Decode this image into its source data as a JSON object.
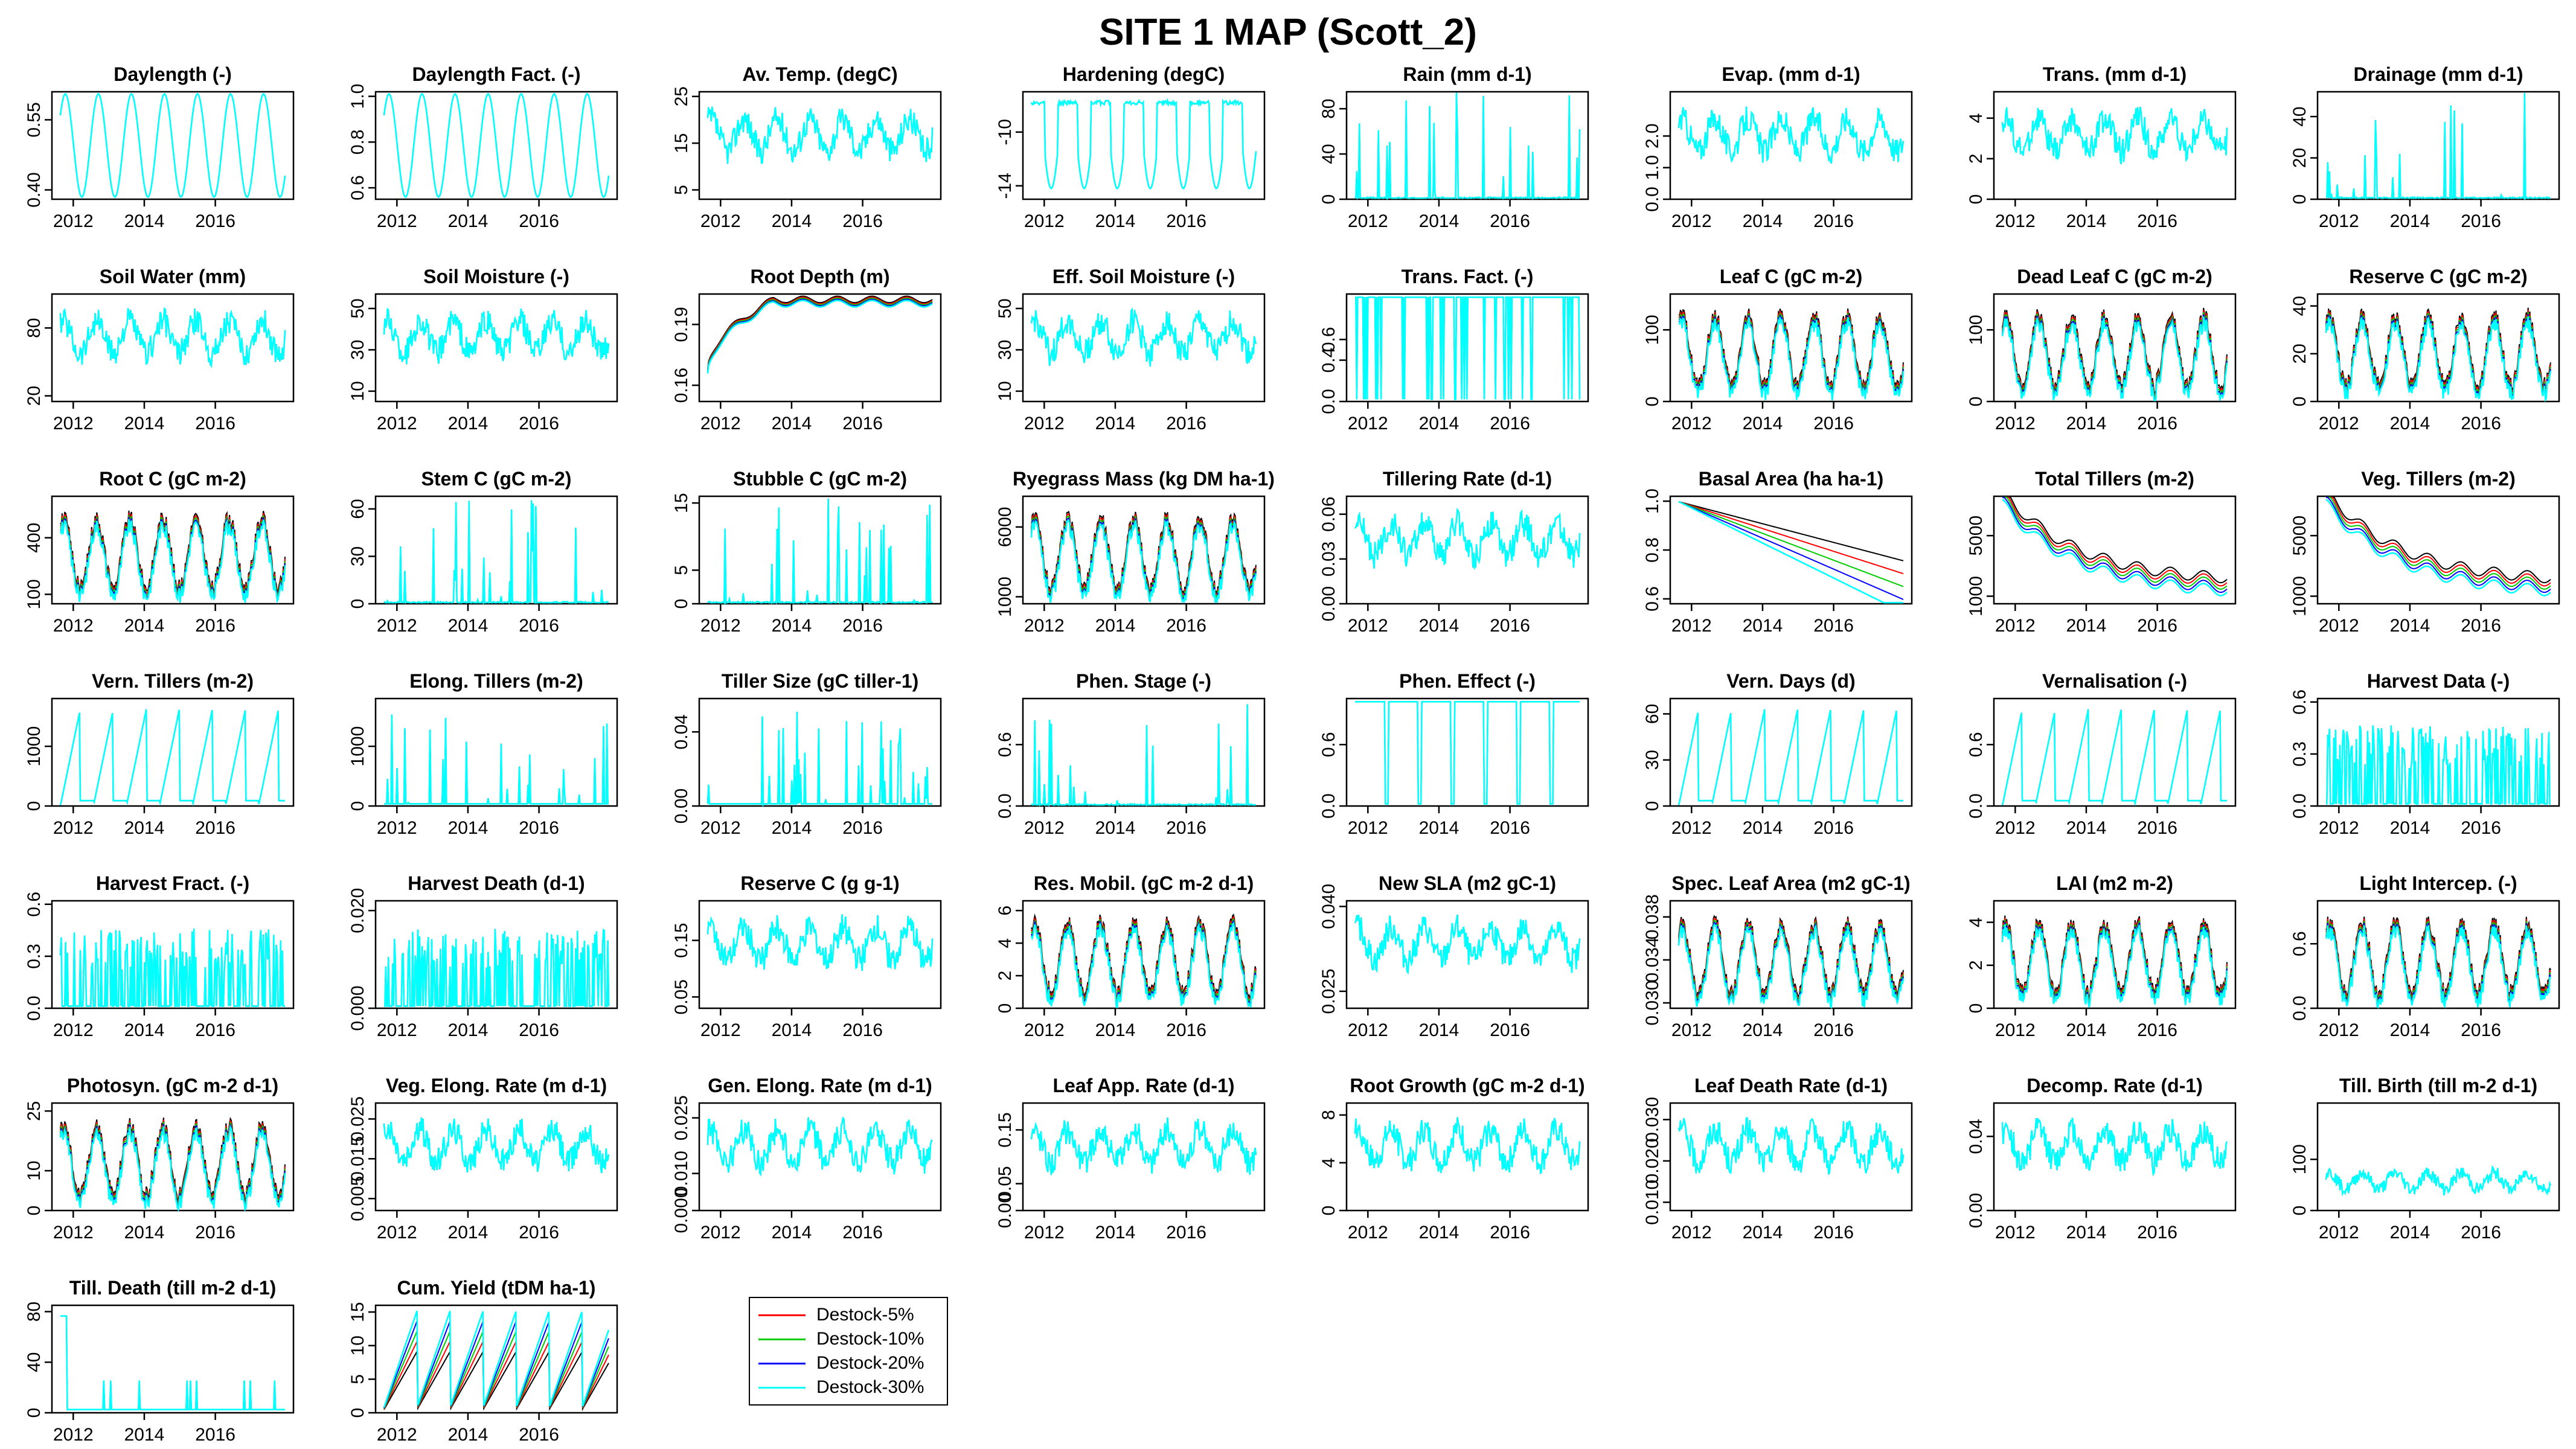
{
  "title": "SITE 1 MAP (Scott_2)",
  "colors": [
    "#000000",
    "#ff0000",
    "#00cd00",
    "#0000ff",
    "#00ffff"
  ],
  "legend": [
    "Destock-5%",
    "Destock-10%",
    "Destock-20%",
    "Destock-30%"
  ],
  "chart_data": [
    {
      "type": "line",
      "title": "Daylength (-)",
      "xlim": [
        2011.4,
        2018.2
      ],
      "xticks": [
        "2012",
        "2014",
        "2016"
      ],
      "ylim": [
        0.38,
        0.61
      ],
      "yticks": [
        "0.40",
        "0.55"
      ]
    },
    {
      "type": "line",
      "title": "Daylength Fact. (-)",
      "xlim": [
        2011.4,
        2018.2
      ],
      "xticks": [
        "2012",
        "2014",
        "2016"
      ],
      "ylim": [
        0.55,
        1.02
      ],
      "yticks": [
        "0.6",
        "0.8",
        "1.0"
      ]
    },
    {
      "type": "line",
      "title": "Av. Temp. (degC)",
      "xlim": [
        2011.4,
        2018.2
      ],
      "xticks": [
        "2012",
        "2014",
        "2016"
      ],
      "ylim": [
        3,
        26
      ],
      "yticks": [
        "5",
        "15",
        "25"
      ]
    },
    {
      "type": "line",
      "title": "Hardening (degC)",
      "xlim": [
        2011.4,
        2018.2
      ],
      "xticks": [
        "2012",
        "2014",
        "2016"
      ],
      "ylim": [
        -15,
        -7
      ],
      "yticks": [
        "-14",
        "-10"
      ]
    },
    {
      "type": "line",
      "title": "Rain (mm d-1)",
      "xlim": [
        2011.4,
        2018.2
      ],
      "xticks": [
        "2012",
        "2014",
        "2016"
      ],
      "ylim": [
        0,
        95
      ],
      "yticks": [
        "0",
        "40",
        "80"
      ]
    },
    {
      "type": "line",
      "title": "Evap. (mm d-1)",
      "xlim": [
        2011.4,
        2018.2
      ],
      "xticks": [
        "2012",
        "2014",
        "2016"
      ],
      "ylim": [
        0,
        3.4
      ],
      "yticks": [
        "0.0",
        "1.0",
        "2.0"
      ]
    },
    {
      "type": "line",
      "title": "Trans. (mm d-1)",
      "xlim": [
        2011.4,
        2018.2
      ],
      "xticks": [
        "2012",
        "2014",
        "2016"
      ],
      "ylim": [
        0,
        5.3
      ],
      "yticks": [
        "0",
        "2",
        "4"
      ]
    },
    {
      "type": "line",
      "title": "Drainage (mm d-1)",
      "xlim": [
        2011.4,
        2018.2
      ],
      "xticks": [
        "2012",
        "2014",
        "2016"
      ],
      "ylim": [
        0,
        52
      ],
      "yticks": [
        "0",
        "20",
        "40"
      ]
    },
    {
      "type": "line",
      "title": "Soil Water (mm)",
      "xlim": [
        2011.4,
        2018.2
      ],
      "xticks": [
        "2012",
        "2014",
        "2016"
      ],
      "ylim": [
        15,
        110
      ],
      "yticks": [
        "20",
        "80"
      ]
    },
    {
      "type": "line",
      "title": "Soil Moisture (-)",
      "xlim": [
        2011.4,
        2018.2
      ],
      "xticks": [
        "2012",
        "2014",
        "2016"
      ],
      "ylim": [
        5,
        57
      ],
      "yticks": [
        "10",
        "30",
        "50"
      ]
    },
    {
      "type": "line",
      "title": "Root Depth (m)",
      "xlim": [
        2011.4,
        2018.2
      ],
      "xticks": [
        "2012",
        "2014",
        "2016"
      ],
      "ylim": [
        0.152,
        0.205
      ],
      "yticks": [
        "0.16",
        "0.19"
      ]
    },
    {
      "type": "line",
      "title": "Eff. Soil Moisture (-)",
      "xlim": [
        2011.4,
        2018.2
      ],
      "xticks": [
        "2012",
        "2014",
        "2016"
      ],
      "ylim": [
        5,
        57
      ],
      "yticks": [
        "10",
        "30",
        "50"
      ]
    },
    {
      "type": "line",
      "title": "Trans. Fact. (-)",
      "xlim": [
        2011.4,
        2018.2
      ],
      "xticks": [
        "2012",
        "2014",
        "2016"
      ],
      "ylim": [
        0,
        1.04
      ],
      "yticks": [
        "0.0",
        "0.4",
        "0.6"
      ]
    },
    {
      "type": "line",
      "title": "Leaf C (gC m-2)",
      "xlim": [
        2011.4,
        2018.2
      ],
      "xticks": [
        "2012",
        "2014",
        "2016"
      ],
      "ylim": [
        0,
        150
      ],
      "yticks": [
        "0",
        "100"
      ]
    },
    {
      "type": "line",
      "title": "Dead Leaf C (gC m-2)",
      "xlim": [
        2011.4,
        2018.2
      ],
      "xticks": [
        "2012",
        "2014",
        "2016"
      ],
      "ylim": [
        0,
        150
      ],
      "yticks": [
        "0",
        "100"
      ]
    },
    {
      "type": "line",
      "title": "Reserve C (gC m-2)",
      "xlim": [
        2011.4,
        2018.2
      ],
      "xticks": [
        "2012",
        "2014",
        "2016"
      ],
      "ylim": [
        0,
        45
      ],
      "yticks": [
        "0",
        "20",
        "40"
      ]
    },
    {
      "type": "line",
      "title": "Root C (gC m-2)",
      "xlim": [
        2011.4,
        2018.2
      ],
      "xticks": [
        "2012",
        "2014",
        "2016"
      ],
      "ylim": [
        50,
        620
      ],
      "yticks": [
        "100",
        "400"
      ]
    },
    {
      "type": "line",
      "title": "Stem C (gC m-2)",
      "xlim": [
        2011.4,
        2018.2
      ],
      "xticks": [
        "2012",
        "2014",
        "2016"
      ],
      "ylim": [
        0,
        68
      ],
      "yticks": [
        "0",
        "30",
        "60"
      ]
    },
    {
      "type": "line",
      "title": "Stubble C (gC m-2)",
      "xlim": [
        2011.4,
        2018.2
      ],
      "xticks": [
        "2012",
        "2014",
        "2016"
      ],
      "ylim": [
        0,
        16
      ],
      "yticks": [
        "0",
        "5",
        "15"
      ]
    },
    {
      "type": "line",
      "title": "Ryegrass Mass (kg DM ha-1)",
      "xlim": [
        2011.4,
        2018.2
      ],
      "xticks": [
        "2012",
        "2014",
        "2016"
      ],
      "ylim": [
        500,
        8200
      ],
      "yticks": [
        "1000",
        "6000"
      ]
    },
    {
      "type": "line",
      "title": "Tillering Rate (d-1)",
      "xlim": [
        2011.4,
        2018.2
      ],
      "xticks": [
        "2012",
        "2014",
        "2016"
      ],
      "ylim": [
        0,
        0.072
      ],
      "yticks": [
        "0.00",
        "0.03",
        "0.06"
      ]
    },
    {
      "type": "line",
      "title": "Basal Area (ha ha-1)",
      "xlim": [
        2011.4,
        2018.2
      ],
      "xticks": [
        "2012",
        "2014",
        "2016"
      ],
      "ylim": [
        0.58,
        1.02
      ],
      "yticks": [
        "0.6",
        "0.8",
        "1.0"
      ]
    },
    {
      "type": "line",
      "title": "Total Tillers (m-2)",
      "xlim": [
        2011.4,
        2018.2
      ],
      "xticks": [
        "2012",
        "2014",
        "2016"
      ],
      "ylim": [
        500,
        7600
      ],
      "yticks": [
        "1000",
        "5000"
      ]
    },
    {
      "type": "line",
      "title": "Veg. Tillers (m-2)",
      "xlim": [
        2011.4,
        2018.2
      ],
      "xticks": [
        "2012",
        "2014",
        "2016"
      ],
      "ylim": [
        500,
        7600
      ],
      "yticks": [
        "1000",
        "5000"
      ]
    },
    {
      "type": "line",
      "title": "Vern. Tillers (m-2)",
      "xlim": [
        2011.4,
        2018.2
      ],
      "xticks": [
        "2012",
        "2014",
        "2016"
      ],
      "ylim": [
        0,
        1800
      ],
      "yticks": [
        "0",
        "1000"
      ]
    },
    {
      "type": "line",
      "title": "Elong. Tillers (m-2)",
      "xlim": [
        2011.4,
        2018.2
      ],
      "xticks": [
        "2012",
        "2014",
        "2016"
      ],
      "ylim": [
        0,
        1800
      ],
      "yticks": [
        "0",
        "1000"
      ]
    },
    {
      "type": "line",
      "title": "Tiller Size (gC tiller-1)",
      "xlim": [
        2011.4,
        2018.2
      ],
      "xticks": [
        "2012",
        "2014",
        "2016"
      ],
      "ylim": [
        0,
        0.058
      ],
      "yticks": [
        "0.00",
        "0.04"
      ]
    },
    {
      "type": "line",
      "title": "Phen. Stage (-)",
      "xlim": [
        2011.4,
        2018.2
      ],
      "xticks": [
        "2012",
        "2014",
        "2016"
      ],
      "ylim": [
        0,
        1.05
      ],
      "yticks": [
        "0.0",
        "0.6"
      ]
    },
    {
      "type": "line",
      "title": "Phen. Effect (-)",
      "xlim": [
        2011.4,
        2018.2
      ],
      "xticks": [
        "2012",
        "2014",
        "2016"
      ],
      "ylim": [
        0,
        1.05
      ],
      "yticks": [
        "0.0",
        "0.6"
      ]
    },
    {
      "type": "line",
      "title": "Vern. Days (d)",
      "xlim": [
        2011.4,
        2018.2
      ],
      "xticks": [
        "2012",
        "2014",
        "2016"
      ],
      "ylim": [
        0,
        70
      ],
      "yticks": [
        "0",
        "30",
        "60"
      ]
    },
    {
      "type": "line",
      "title": "Vernalisation (-)",
      "xlim": [
        2011.4,
        2018.2
      ],
      "xticks": [
        "2012",
        "2014",
        "2016"
      ],
      "ylim": [
        0,
        1.05
      ],
      "yticks": [
        "0.0",
        "0.6"
      ]
    },
    {
      "type": "line",
      "title": "Harvest Data (-)",
      "xlim": [
        2011.4,
        2018.2
      ],
      "xticks": [
        "2012",
        "2014",
        "2016"
      ],
      "ylim": [
        0,
        0.62
      ],
      "yticks": [
        "0.0",
        "0.3",
        "0.6"
      ]
    },
    {
      "type": "line",
      "title": "Harvest Fract. (-)",
      "xlim": [
        2011.4,
        2018.2
      ],
      "xticks": [
        "2012",
        "2014",
        "2016"
      ],
      "ylim": [
        0,
        0.62
      ],
      "yticks": [
        "0.0",
        "0.3",
        "0.6"
      ]
    },
    {
      "type": "line",
      "title": "Harvest Death (d-1)",
      "xlim": [
        2011.4,
        2018.2
      ],
      "xticks": [
        "2012",
        "2014",
        "2016"
      ],
      "ylim": [
        0,
        0.022
      ],
      "yticks": [
        "0.000",
        "0.020"
      ]
    },
    {
      "type": "line",
      "title": "Reserve C (g g-1)",
      "xlim": [
        2011.4,
        2018.2
      ],
      "xticks": [
        "2012",
        "2014",
        "2016"
      ],
      "ylim": [
        0.03,
        0.22
      ],
      "yticks": [
        "0.05",
        "0.15"
      ]
    },
    {
      "type": "line",
      "title": "Res. Mobil. (gC m-2 d-1)",
      "xlim": [
        2011.4,
        2018.2
      ],
      "xticks": [
        "2012",
        "2014",
        "2016"
      ],
      "ylim": [
        0,
        6.6
      ],
      "yticks": [
        "0",
        "2",
        "4",
        "6"
      ]
    },
    {
      "type": "line",
      "title": "New SLA (m2 gC-1)",
      "xlim": [
        2011.4,
        2018.2
      ],
      "xticks": [
        "2012",
        "2014",
        "2016"
      ],
      "ylim": [
        0.022,
        0.041
      ],
      "yticks": [
        "0.025",
        "0.040"
      ]
    },
    {
      "type": "line",
      "title": "Spec. Leaf Area (m2 gC-1)",
      "xlim": [
        2011.4,
        2018.2
      ],
      "xticks": [
        "2012",
        "2014",
        "2016"
      ],
      "ylim": [
        0.0295,
        0.0395
      ],
      "yticks": [
        "0.030",
        "0.034",
        "0.038"
      ]
    },
    {
      "type": "line",
      "title": "LAI (m2 m-2)",
      "xlim": [
        2011.4,
        2018.2
      ],
      "xticks": [
        "2012",
        "2014",
        "2016"
      ],
      "ylim": [
        0,
        5
      ],
      "yticks": [
        "0",
        "2",
        "4"
      ]
    },
    {
      "type": "line",
      "title": "Light Intercep. (-)",
      "xlim": [
        2011.4,
        2018.2
      ],
      "xticks": [
        "2012",
        "2014",
        "2016"
      ],
      "ylim": [
        0,
        1
      ],
      "yticks": [
        "0.0",
        "0.6"
      ]
    },
    {
      "type": "line",
      "title": "Photosyn. (gC m-2 d-1)",
      "xlim": [
        2011.4,
        2018.2
      ],
      "xticks": [
        "2012",
        "2014",
        "2016"
      ],
      "ylim": [
        0,
        27
      ],
      "yticks": [
        "0",
        "10",
        "25"
      ]
    },
    {
      "type": "line",
      "title": "Veg. Elong. Rate (m d-1)",
      "xlim": [
        2011.4,
        2018.2
      ],
      "xticks": [
        "2012",
        "2014",
        "2016"
      ],
      "ylim": [
        0.002,
        0.029
      ],
      "yticks": [
        "0.005",
        "0.015",
        "0.025"
      ]
    },
    {
      "type": "line",
      "title": "Gen. Elong. Rate (m d-1)",
      "xlim": [
        2011.4,
        2018.2
      ],
      "xticks": [
        "2012",
        "2014",
        "2016"
      ],
      "ylim": [
        0,
        0.029
      ],
      "yticks": [
        "0.000",
        "0.010",
        "0.025"
      ]
    },
    {
      "type": "line",
      "title": "Leaf App. Rate (d-1)",
      "xlim": [
        2011.4,
        2018.2
      ],
      "xticks": [
        "2012",
        "2014",
        "2016"
      ],
      "ylim": [
        0,
        0.2
      ],
      "yticks": [
        "0.00",
        "0.05",
        "0.15"
      ]
    },
    {
      "type": "line",
      "title": "Root Growth (gC m-2 d-1)",
      "xlim": [
        2011.4,
        2018.2
      ],
      "xticks": [
        "2012",
        "2014",
        "2016"
      ],
      "ylim": [
        0,
        9
      ],
      "yticks": [
        "0",
        "4",
        "8"
      ]
    },
    {
      "type": "line",
      "title": "Leaf Death Rate (d-1)",
      "xlim": [
        2011.4,
        2018.2
      ],
      "xticks": [
        "2012",
        "2014",
        "2016"
      ],
      "ylim": [
        0.008,
        0.034
      ],
      "yticks": [
        "0.010",
        "0.020",
        "0.030"
      ]
    },
    {
      "type": "line",
      "title": "Decomp. Rate (d-1)",
      "xlim": [
        2011.4,
        2018.2
      ],
      "xticks": [
        "2012",
        "2014",
        "2016"
      ],
      "ylim": [
        0,
        0.058
      ],
      "yticks": [
        "0.00",
        "0.04"
      ]
    },
    {
      "type": "line",
      "title": "Till. Birth (till m-2 d-1)",
      "xlim": [
        2011.4,
        2018.2
      ],
      "xticks": [
        "2012",
        "2014",
        "2016"
      ],
      "ylim": [
        0,
        210
      ],
      "yticks": [
        "0",
        "100"
      ]
    },
    {
      "type": "line",
      "title": "Till. Death (till m-2 d-1)",
      "xlim": [
        2011.4,
        2018.2
      ],
      "xticks": [
        "2012",
        "2014",
        "2016"
      ],
      "ylim": [
        0,
        85
      ],
      "yticks": [
        "0",
        "40",
        "80"
      ]
    },
    {
      "type": "line",
      "title": "Cum. Yield (tDM ha-1)",
      "xlim": [
        2011.4,
        2018.2
      ],
      "xticks": [
        "2012",
        "2014",
        "2016"
      ],
      "ylim": [
        0,
        16
      ],
      "yticks": [
        "0",
        "5",
        "10",
        "15"
      ]
    }
  ]
}
